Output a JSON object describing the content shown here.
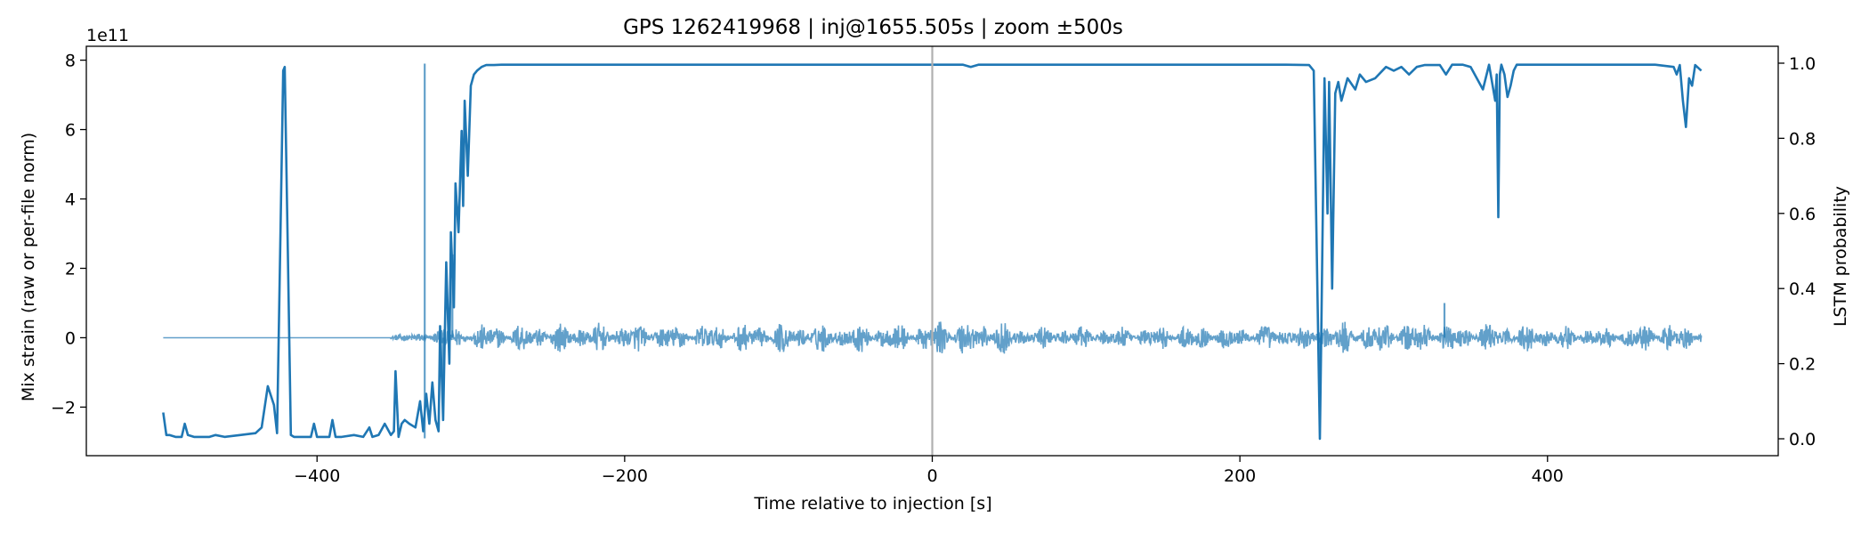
{
  "chart_data": {
    "type": "line",
    "title": "GPS 1262419968 | inj@1655.505s | zoom ±500s",
    "xlabel": "Time relative to injection [s]",
    "ylabel_left": "Mix strain (raw or per-file norm)",
    "ylabel_right": "LSTM probability",
    "left_axis_offset_text": "1e11",
    "xlim": [
      -550,
      550
    ],
    "ylim_left": [
      -340000000000.0,
      840000000000.0
    ],
    "ylim_right": [
      -0.045,
      1.045
    ],
    "x_ticks": [
      -400,
      -200,
      0,
      200,
      400
    ],
    "x_tick_labels": [
      "−400",
      "−200",
      "0",
      "200",
      "400"
    ],
    "y_left_ticks": [
      -200000000000.0,
      0,
      200000000000.0,
      400000000000.0,
      600000000000.0,
      800000000000.0
    ],
    "y_left_tick_labels": [
      "−2",
      "0",
      "2",
      "4",
      "6",
      "8"
    ],
    "y_right_ticks": [
      0.0,
      0.2,
      0.4,
      0.6,
      0.8,
      1.0
    ],
    "y_right_tick_labels": [
      "0.0",
      "0.2",
      "0.4",
      "0.6",
      "0.8",
      "1.0"
    ],
    "grid": false,
    "legend": "none",
    "injection_marker_x": 0,
    "colors": {
      "strain": "#1f77b4",
      "probability": "#1f77b4",
      "marker": "#b0b0b0"
    },
    "series": [
      {
        "axis": "left",
        "style": "noise",
        "alpha": 0.7,
        "segments": [
          {
            "x": [
              -500,
              -352
            ],
            "amplitude": 0
          },
          {
            "x": [
              -352,
              -330
            ],
            "amplitude": 15000000000.0
          },
          {
            "x": [
              -330,
              -300
            ],
            "amplitude": 35000000000.0
          },
          {
            "x": [
              -300,
              -200
            ],
            "amplitude": 45000000000.0
          },
          {
            "x": [
              -200,
              -100
            ],
            "amplitude": 45000000000.0
          },
          {
            "x": [
              -100,
              0
            ],
            "amplitude": 45000000000.0
          },
          {
            "x": [
              0,
              50
            ],
            "amplitude": 60000000000.0
          },
          {
            "x": [
              50,
              150
            ],
            "amplitude": 35000000000.0
          },
          {
            "x": [
              150,
              250
            ],
            "amplitude": 40000000000.0
          },
          {
            "x": [
              250,
              330
            ],
            "amplitude": 50000000000.0
          },
          {
            "x": [
              330,
              400
            ],
            "amplitude": 45000000000.0
          },
          {
            "x": [
              400,
              460
            ],
            "amplitude": 35000000000.0
          },
          {
            "x": [
              460,
              500
            ],
            "amplitude": 45000000000.0
          }
        ],
        "spikes": [
          {
            "x": -330,
            "y": 790000000000.0
          },
          {
            "x": -330,
            "y": -290000000000.0
          },
          {
            "x": -318,
            "y": -240000000000.0
          },
          {
            "x": -312,
            "y": 240000000000.0
          },
          {
            "x": 333,
            "y": 100000000000.0
          },
          {
            "x": 252,
            "y": -90000000000.0
          }
        ]
      },
      {
        "axis": "right",
        "style": "line",
        "alpha": 1.0,
        "x": [
          -500,
          -498,
          -496,
          -492,
          -488,
          -486,
          -484,
          -480,
          -470,
          -466,
          -460,
          -450,
          -440,
          -436,
          -432,
          -428,
          -426,
          -424,
          -422,
          -421,
          -419,
          -417,
          -415,
          -410,
          -404,
          -402,
          -400,
          -396,
          -392,
          -390,
          -388,
          -384,
          -376,
          -370,
          -366,
          -364,
          -360,
          -356,
          -352,
          -350,
          -349,
          -347,
          -345,
          -343,
          -340,
          -336,
          -333,
          -331,
          -329,
          -327,
          -325,
          -323,
          -321,
          -320,
          -318,
          -316,
          -314,
          -313,
          -311,
          -310,
          -308,
          -306,
          -305,
          -304,
          -302,
          -300,
          -298,
          -296,
          -293,
          -290,
          -285,
          -280,
          -250,
          -200,
          -150,
          -100,
          -50,
          0,
          20,
          25,
          30,
          100,
          200,
          230,
          245,
          248,
          250,
          252,
          253,
          255,
          257,
          258,
          260,
          262,
          264,
          266,
          270,
          275,
          278,
          282,
          288,
          295,
          300,
          305,
          310,
          315,
          320,
          330,
          334,
          338,
          345,
          350,
          358,
          362,
          366,
          367,
          368,
          369,
          370,
          372,
          374,
          376,
          378,
          380,
          385,
          400,
          440,
          470,
          482,
          484,
          486,
          488,
          490,
          492,
          494,
          496,
          500
        ],
        "y": [
          0.07,
          0.01,
          0.01,
          0.005,
          0.005,
          0.04,
          0.01,
          0.005,
          0.005,
          0.01,
          0.005,
          0.01,
          0.015,
          0.03,
          0.14,
          0.09,
          0.015,
          0.5,
          0.98,
          0.99,
          0.5,
          0.01,
          0.005,
          0.005,
          0.005,
          0.04,
          0.005,
          0.005,
          0.005,
          0.05,
          0.005,
          0.005,
          0.01,
          0.005,
          0.03,
          0.005,
          0.01,
          0.04,
          0.01,
          0.02,
          0.18,
          0.005,
          0.04,
          0.05,
          0.04,
          0.03,
          0.1,
          0.02,
          0.12,
          0.04,
          0.15,
          0.05,
          0.02,
          0.3,
          0.05,
          0.47,
          0.2,
          0.55,
          0.35,
          0.68,
          0.55,
          0.82,
          0.62,
          0.9,
          0.7,
          0.94,
          0.97,
          0.98,
          0.99,
          0.995,
          0.995,
          0.996,
          0.996,
          0.996,
          0.996,
          0.996,
          0.996,
          0.996,
          0.996,
          0.99,
          0.996,
          0.996,
          0.996,
          0.996,
          0.995,
          0.98,
          0.5,
          0.0,
          0.3,
          0.96,
          0.6,
          0.95,
          0.4,
          0.92,
          0.95,
          0.9,
          0.96,
          0.93,
          0.97,
          0.95,
          0.96,
          0.99,
          0.98,
          0.99,
          0.97,
          0.99,
          0.995,
          0.995,
          0.97,
          0.996,
          0.996,
          0.99,
          0.93,
          0.996,
          0.9,
          0.97,
          0.59,
          0.97,
          0.996,
          0.97,
          0.91,
          0.94,
          0.98,
          0.996,
          0.996,
          0.996,
          0.996,
          0.996,
          0.99,
          0.97,
          0.995,
          0.9,
          0.83,
          0.96,
          0.94,
          0.995,
          0.98
        ]
      }
    ]
  }
}
